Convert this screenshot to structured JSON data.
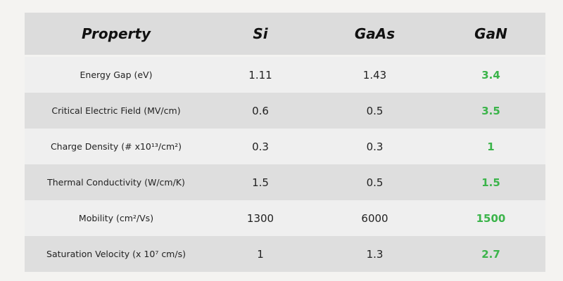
{
  "table": {
    "header": [
      "Property",
      "Si",
      "GaAs",
      "GaN"
    ],
    "rows": [
      [
        "Energy Gap (eV)",
        "1.11",
        "1.43",
        "3.4"
      ],
      [
        "Critical Electric Field (MV/cm)",
        "0.6",
        "0.5",
        "3.5"
      ],
      [
        "Charge Density (# x10¹³/cm²)",
        "0.3",
        "0.3",
        "1"
      ],
      [
        "Thermal Conductivity (W/cm/K)",
        "1.5",
        "0.5",
        "1.5"
      ],
      [
        "Mobility (cm²/Vs)",
        "1300",
        "6000",
        "1500"
      ],
      [
        "Saturation Velocity (x 10⁷ cm/s)",
        "1",
        "1.3",
        "2.7"
      ]
    ]
  }
}
